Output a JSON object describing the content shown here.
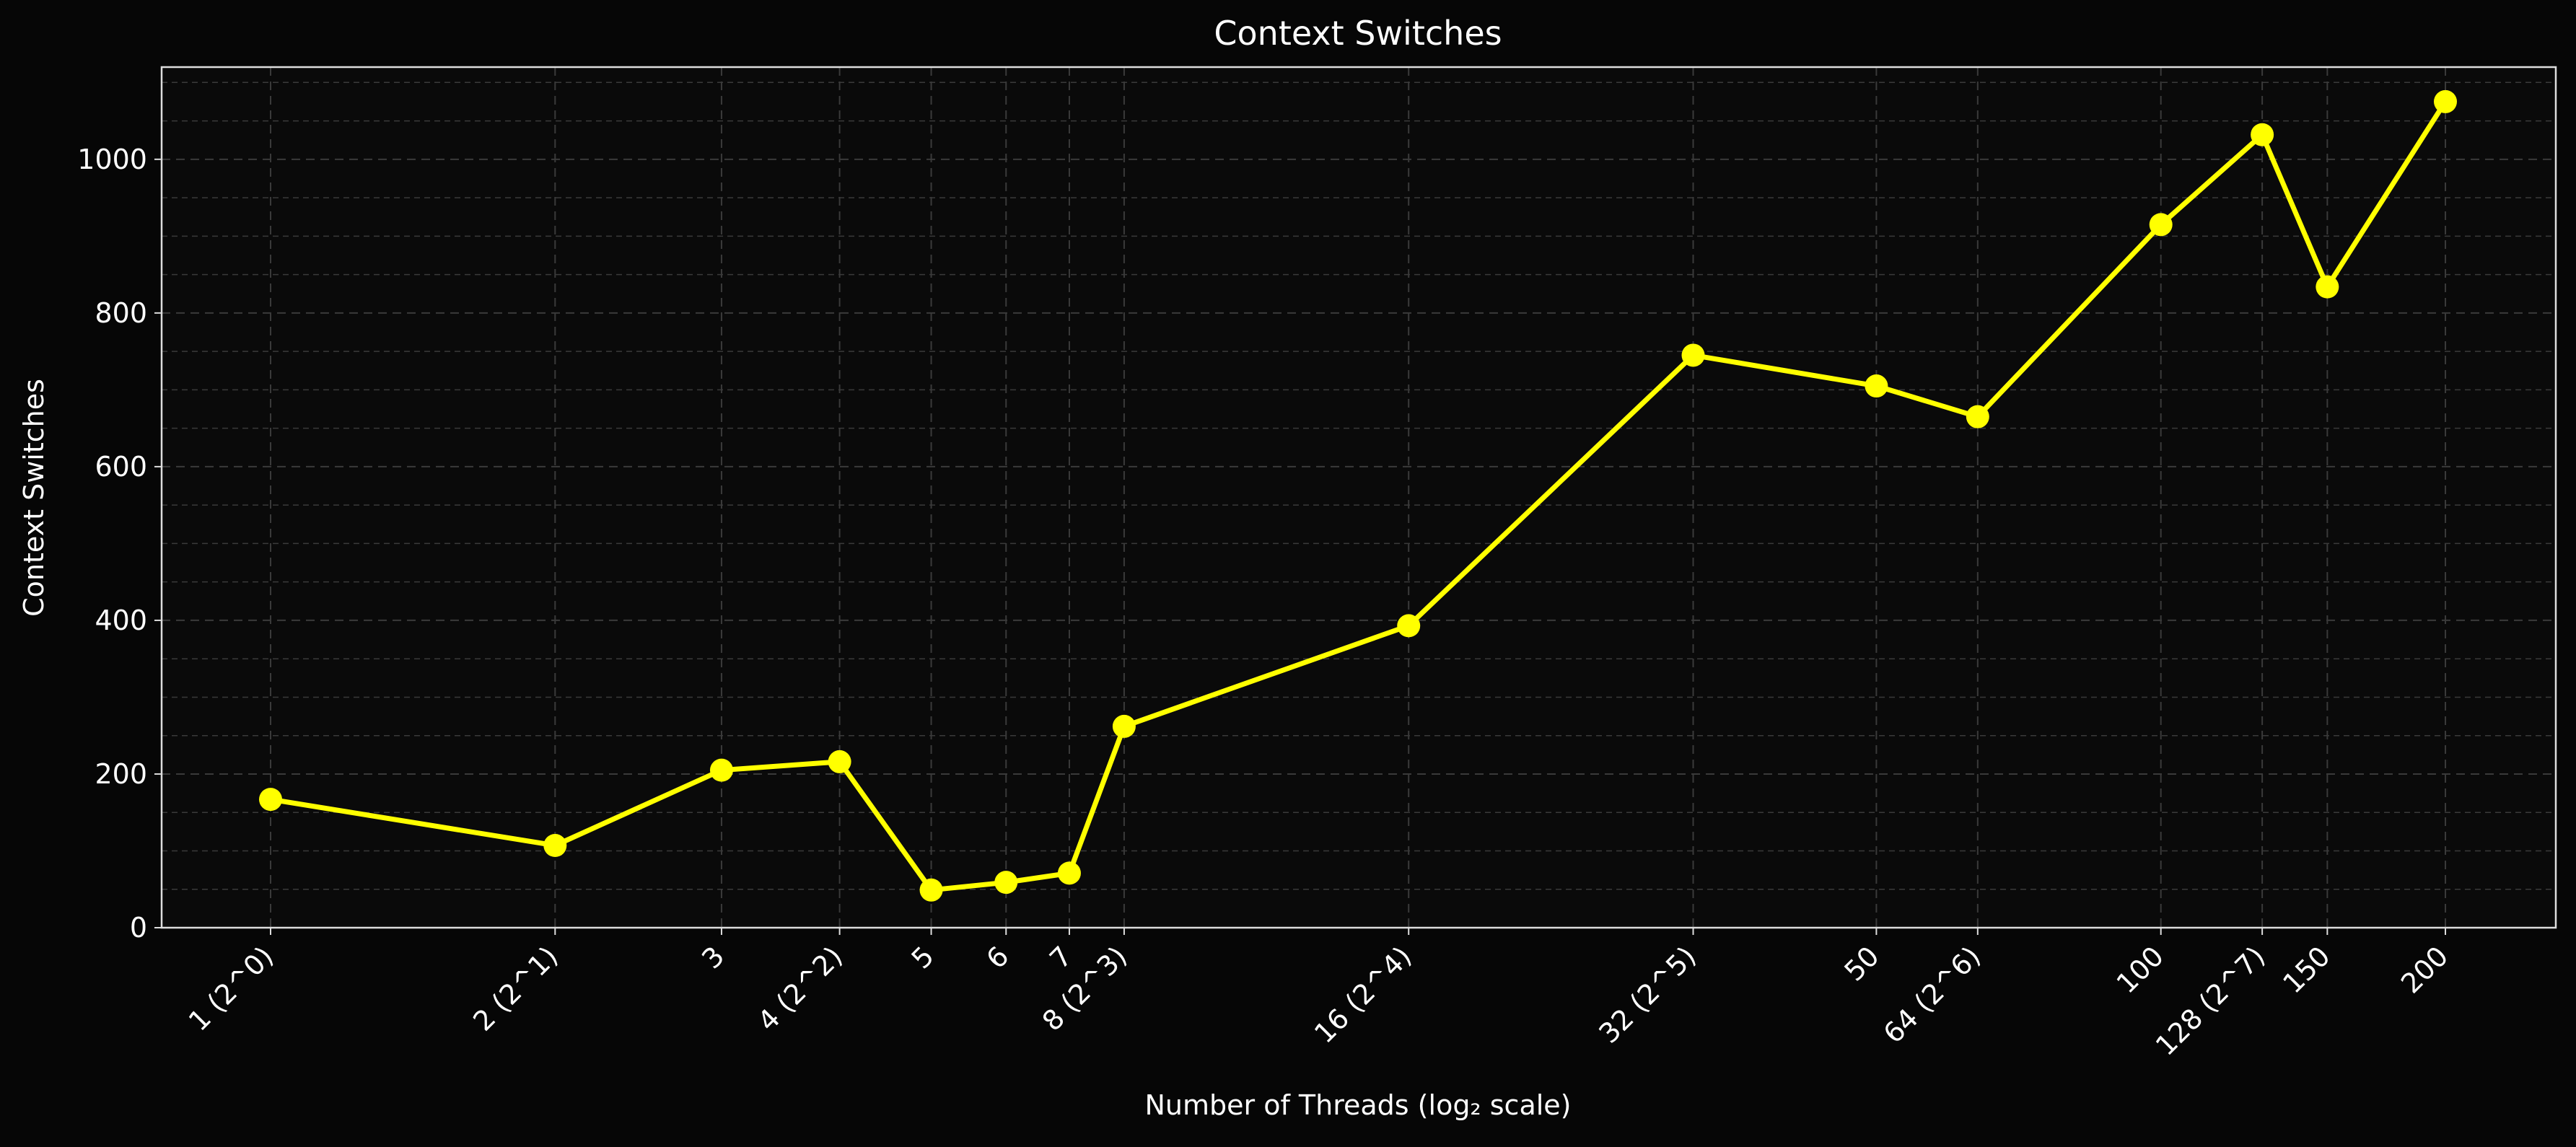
{
  "chart_data": {
    "type": "line",
    "title": "Context Switches",
    "xlabel": "Number of Threads (log₂ scale)",
    "ylabel": "Context Switches",
    "x_scale": "log2",
    "x": [
      1,
      2,
      3,
      4,
      5,
      6,
      7,
      8,
      16,
      32,
      50,
      64,
      100,
      128,
      150,
      200
    ],
    "x_tick_labels": [
      "1 (2^0)",
      "2 (2^1)",
      "3",
      "4 (2^2)",
      "5",
      "6",
      "7",
      "8 (2^3)",
      "16 (2^4)",
      "32 (2^5)",
      "50",
      "64 (2^6)",
      "100",
      "128 (2^7)",
      "150",
      "200"
    ],
    "series": [
      {
        "values": [
          167,
          107,
          205,
          216,
          49,
          59,
          71,
          262,
          393,
          745,
          705,
          665,
          915,
          1032,
          834,
          1075
        ],
        "color": "#ffff00"
      }
    ],
    "ylim": [
      0,
      1120
    ],
    "y_ticks": [
      0,
      200,
      400,
      600,
      800,
      1000
    ],
    "y_minor_step": 50,
    "grid": true,
    "grid_style": "dashed",
    "legend": "none",
    "colors": {
      "background": "#060606",
      "axes_background": "#0a0a0a",
      "text": "#ffffff",
      "grid": "#3a3a3a",
      "line": "#ffff00"
    }
  }
}
